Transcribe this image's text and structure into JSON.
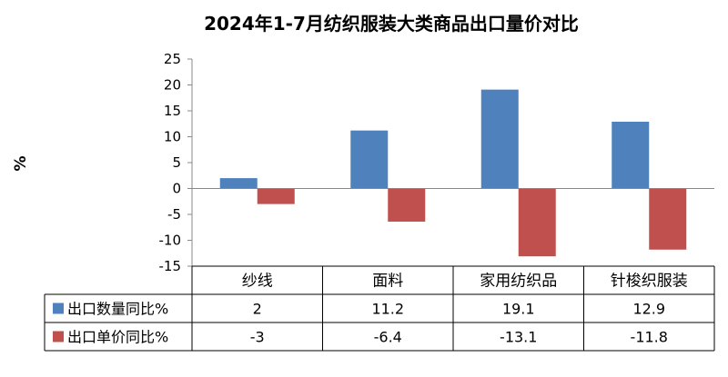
{
  "chart_data": {
    "type": "bar",
    "title": "2024年1-7月纺织服装大类商品出口量价对比",
    "ylabel": "%",
    "ylim": [
      -15,
      25
    ],
    "yticks": [
      25,
      20,
      15,
      10,
      5,
      0,
      -5,
      -10,
      -15
    ],
    "grid": false,
    "legend": "data-table",
    "categories": [
      "纱线",
      "面料",
      "家用纺织品",
      "针梭织服装"
    ],
    "series": [
      {
        "name": "出口数量同比%",
        "color": "#4f81bd",
        "values": [
          2,
          11.2,
          19.1,
          12.9
        ],
        "labels": [
          "2",
          "11.2",
          "19.1",
          "12.9"
        ]
      },
      {
        "name": "出口单价同比%",
        "color": "#c0504d",
        "values": [
          -3,
          -6.4,
          -13.1,
          -11.8
        ],
        "labels": [
          "-3",
          "-6.4",
          "-13.1",
          "-11.8"
        ]
      }
    ]
  }
}
